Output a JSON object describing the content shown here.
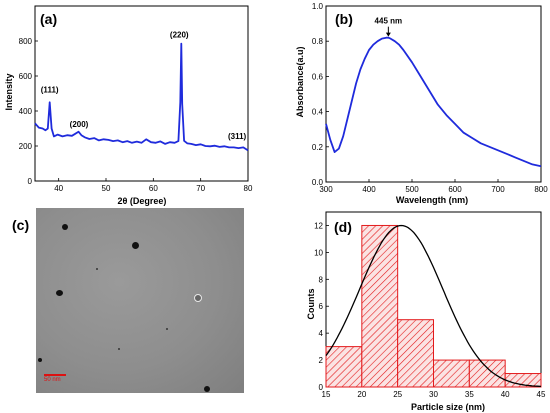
{
  "panels": {
    "a": "(a)",
    "b": "(b)",
    "c": "(c)",
    "d": "(d)"
  },
  "chart_data": [
    {
      "id": "a",
      "type": "line",
      "xlabel": "2θ (Degree)",
      "ylabel": "Intensity",
      "xlim": [
        35,
        80
      ],
      "ylim": [
        0,
        1000
      ],
      "xticks": [
        40,
        50,
        60,
        70,
        80
      ],
      "yticks": [
        0,
        200,
        400,
        600,
        800
      ],
      "color": "#1f2bdc",
      "annotations": [
        {
          "text": "(111)",
          "x": 38.1,
          "y": 450
        },
        {
          "text": "(200)",
          "x": 44.3,
          "y": 270
        },
        {
          "text": "(220)",
          "x": 65.9,
          "y": 785
        },
        {
          "text": "(311)",
          "x": 77.7,
          "y": 195
        }
      ],
      "series": [
        {
          "x": [
            35,
            35.8,
            36.6,
            37.2,
            37.7,
            38.1,
            38.5,
            39,
            39.8,
            40.8,
            41.8,
            42.8,
            43.5,
            44.2,
            44.8,
            45.5,
            46.5,
            47.5,
            48.5,
            49.5,
            50.5,
            51.5,
            52.5,
            53.5,
            54.5,
            55.5,
            56.5,
            57.5,
            58.5,
            59.5,
            60.5,
            61.5,
            62.5,
            63.5,
            64.5,
            65.3,
            65.7,
            65.9,
            66.1,
            66.5,
            67.2,
            68,
            69,
            70,
            71,
            72,
            73,
            74,
            75,
            76,
            77,
            78,
            79,
            80
          ],
          "y": [
            330,
            305,
            300,
            290,
            300,
            450,
            300,
            255,
            265,
            255,
            262,
            258,
            270,
            282,
            262,
            250,
            240,
            245,
            232,
            238,
            235,
            228,
            232,
            222,
            228,
            218,
            225,
            218,
            238,
            222,
            218,
            226,
            212,
            222,
            218,
            228,
            450,
            785,
            440,
            230,
            215,
            212,
            205,
            210,
            200,
            198,
            202,
            195,
            198,
            192,
            192,
            188,
            192,
            175
          ]
        }
      ]
    },
    {
      "id": "b",
      "type": "line",
      "xlabel": "Wavelength (nm)",
      "ylabel": "Absorbance(a.u)",
      "xlim": [
        300,
        800
      ],
      "ylim": [
        0.0,
        1.0
      ],
      "xticks": [
        300,
        400,
        500,
        600,
        700,
        800
      ],
      "yticks": [
        "0.0",
        "0.2",
        "0.4",
        "0.6",
        "0.8",
        "1.0"
      ],
      "color": "#1f2bdc",
      "annotations": [
        {
          "text": "445 nm",
          "x": 445,
          "y": 0.82
        }
      ],
      "series": [
        {
          "x": [
            300,
            310,
            320,
            330,
            340,
            350,
            360,
            370,
            380,
            390,
            400,
            410,
            420,
            430,
            440,
            445,
            450,
            460,
            470,
            480,
            500,
            520,
            540,
            560,
            580,
            600,
            620,
            640,
            660,
            680,
            700,
            720,
            740,
            760,
            780,
            800
          ],
          "y": [
            0.33,
            0.24,
            0.17,
            0.19,
            0.26,
            0.36,
            0.46,
            0.56,
            0.64,
            0.7,
            0.75,
            0.78,
            0.8,
            0.815,
            0.82,
            0.82,
            0.815,
            0.8,
            0.78,
            0.75,
            0.68,
            0.6,
            0.52,
            0.44,
            0.38,
            0.33,
            0.28,
            0.25,
            0.22,
            0.2,
            0.18,
            0.16,
            0.14,
            0.12,
            0.1,
            0.09
          ]
        }
      ]
    },
    {
      "id": "d",
      "type": "bar",
      "xlabel": "Particle size (nm)",
      "ylabel": "Counts",
      "xlim": [
        15,
        45
      ],
      "ylim": [
        0,
        13
      ],
      "xticks": [
        15,
        20,
        25,
        30,
        35,
        40,
        45
      ],
      "yticks": [
        0,
        2,
        4,
        6,
        8,
        10,
        12
      ],
      "bar_color": "#e31a1c",
      "bins": [
        {
          "from": 15,
          "to": 20,
          "count": 3
        },
        {
          "from": 20,
          "to": 25,
          "count": 12
        },
        {
          "from": 25,
          "to": 30,
          "count": 5
        },
        {
          "from": 30,
          "to": 35,
          "count": 2
        },
        {
          "from": 35,
          "to": 40,
          "count": 2
        },
        {
          "from": 40,
          "to": 45,
          "count": 1
        }
      ],
      "fit": {
        "type": "gaussian",
        "center": 25.5,
        "sigma": 5.8,
        "peak": 12
      }
    }
  ],
  "tem_image": {
    "scale_label": "50 nm"
  }
}
